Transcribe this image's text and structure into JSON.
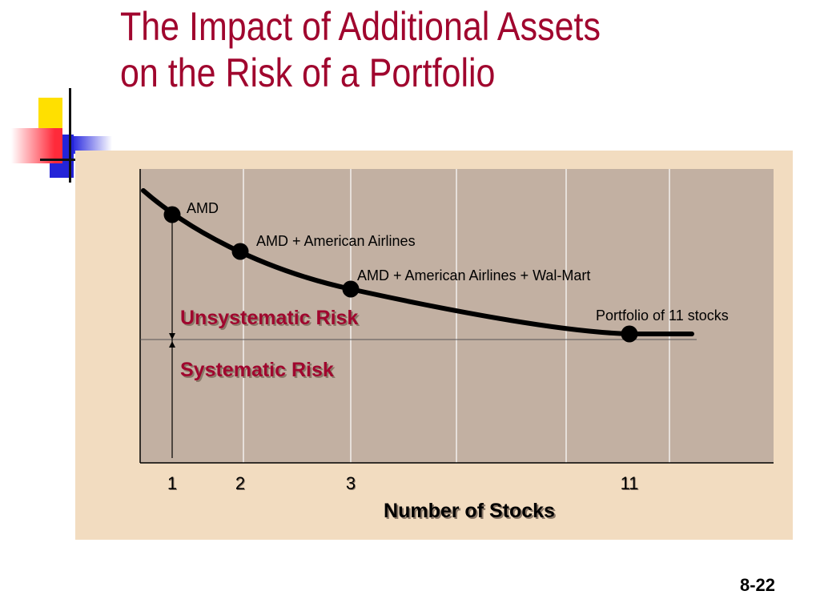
{
  "slide": {
    "title": "The Impact of Additional Assets on the Risk of a Portfolio",
    "slide_number": "8-22"
  },
  "colors": {
    "title": "#a0062e",
    "chart_bg": "#f2dcc0",
    "plot_bg": "#c2b0a2",
    "risk_labels": "#a0062e"
  },
  "chart_data": {
    "type": "line",
    "title": "",
    "xlabel": "Number of Stocks",
    "ylabel": "",
    "x_ticks": [
      "1",
      "2",
      "3",
      "11"
    ],
    "points": [
      {
        "x": 1,
        "label": "AMD"
      },
      {
        "x": 2,
        "label": "AMD + American Airlines"
      },
      {
        "x": 3,
        "label": "AMD + American Airlines + Wal-Mart"
      },
      {
        "x": 11,
        "label": "Portfolio of 11 stocks"
      }
    ],
    "annotations": {
      "unsystematic": "Unsystematic Risk",
      "systematic": "Systematic Risk"
    },
    "grid": true
  }
}
